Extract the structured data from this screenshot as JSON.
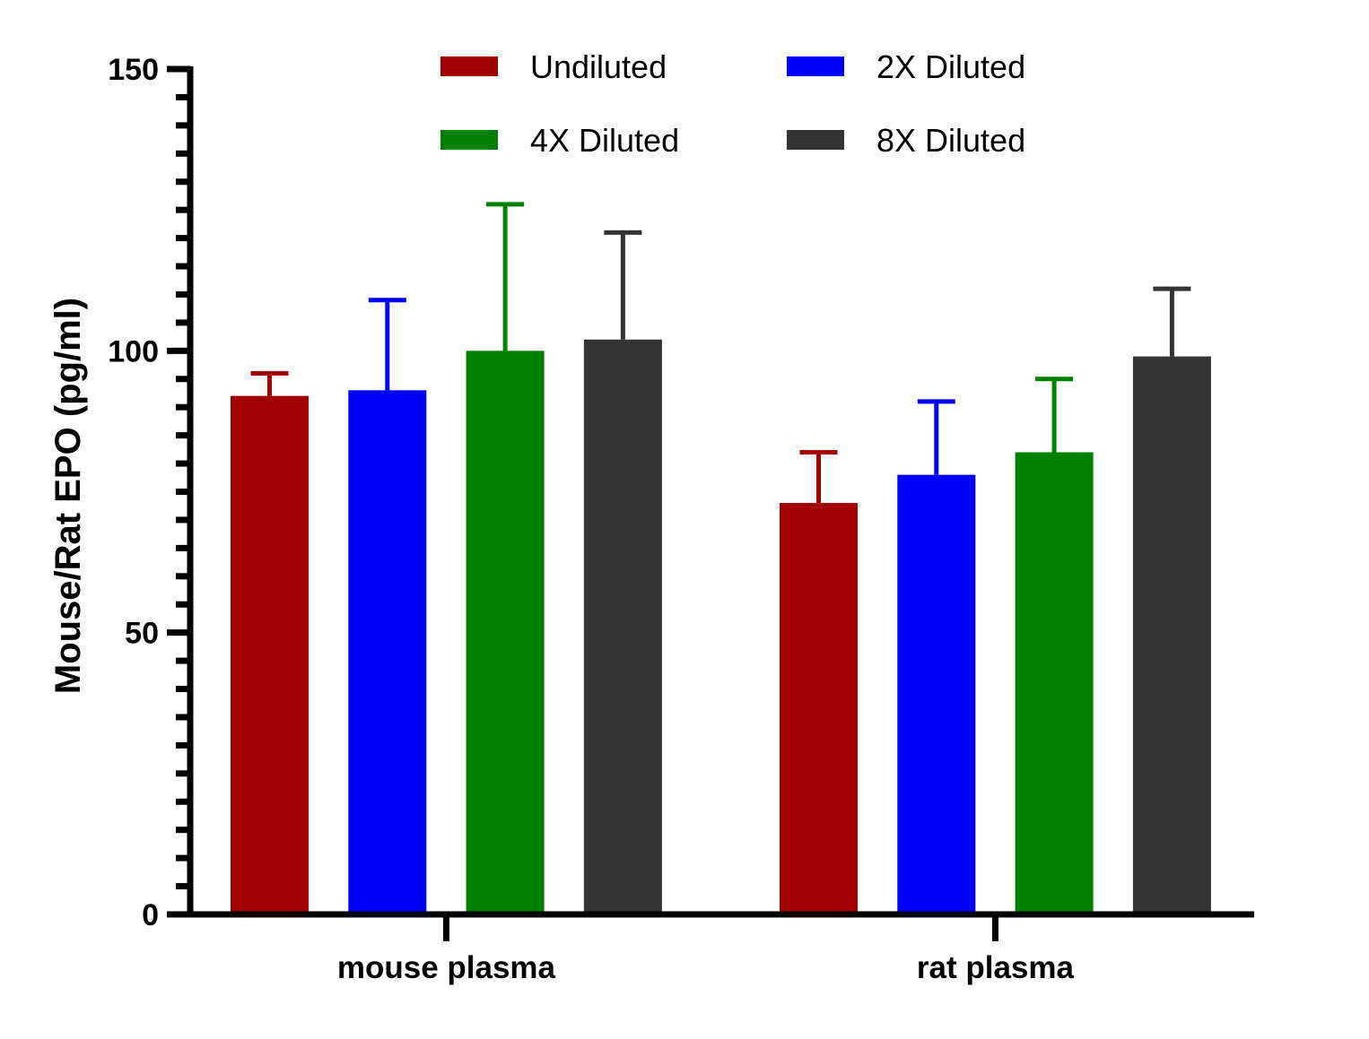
{
  "chart_data": {
    "type": "bar",
    "title": "",
    "xlabel": "",
    "ylabel": "Mouse/Rat EPO (pg/ml)",
    "ylim": [
      0,
      150
    ],
    "yticks": [
      0,
      50,
      100,
      150
    ],
    "categories": [
      "mouse plasma",
      "rat plasma"
    ],
    "series": [
      {
        "name": "Undiluted",
        "color": "#a00000",
        "values": [
          92,
          73
        ],
        "error": [
          4,
          9
        ]
      },
      {
        "name": "2X Diluted",
        "color": "#0000ff",
        "values": [
          93,
          78
        ],
        "error": [
          16,
          13
        ]
      },
      {
        "name": "4X Diluted",
        "color": "#008000",
        "values": [
          100,
          82
        ],
        "error": [
          26,
          13
        ]
      },
      {
        "name": "8X Diluted",
        "color": "#333333",
        "values": [
          102,
          99
        ],
        "error": [
          19,
          12
        ]
      }
    ],
    "grid": false,
    "legend_position": "top"
  }
}
